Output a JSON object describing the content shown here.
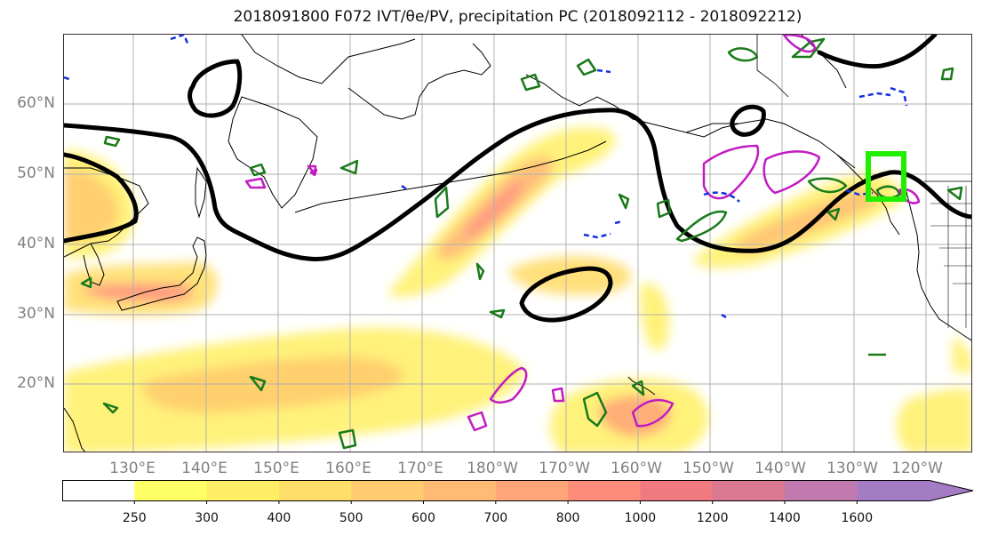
{
  "title": "2018091800 F072 IVT/θe/PV, precipitation PC (2018092112 - 2018092212)",
  "map": {
    "lat_labels": [
      "60°N",
      "50°N",
      "40°N",
      "30°N",
      "20°N"
    ],
    "lon_labels": [
      "130°E",
      "140°E",
      "150°E",
      "160°E",
      "170°E",
      "180°W",
      "170°W",
      "160°W",
      "150°W",
      "140°W",
      "130°W",
      "120°W"
    ],
    "colors": {
      "thick_contour": "#000000",
      "green_contour": "#1a7a1a",
      "magenta_contour": "#c21bc2",
      "blue_contour": "#1030e0",
      "highlight_box": "#22ee00",
      "grid": "#b0b0b0",
      "coast": "#000000"
    }
  },
  "colorbar": {
    "ticks": [
      "250",
      "300",
      "400",
      "500",
      "600",
      "700",
      "800",
      "1000",
      "1200",
      "1400",
      "1600"
    ],
    "colors": [
      "#ffffff",
      "#ffff66",
      "#ffee66",
      "#ffde6a",
      "#ffcc70",
      "#ffba75",
      "#ffa678",
      "#ff8c7a",
      "#f07a80",
      "#d97890",
      "#c07ab0",
      "#a47cc4"
    ]
  }
}
